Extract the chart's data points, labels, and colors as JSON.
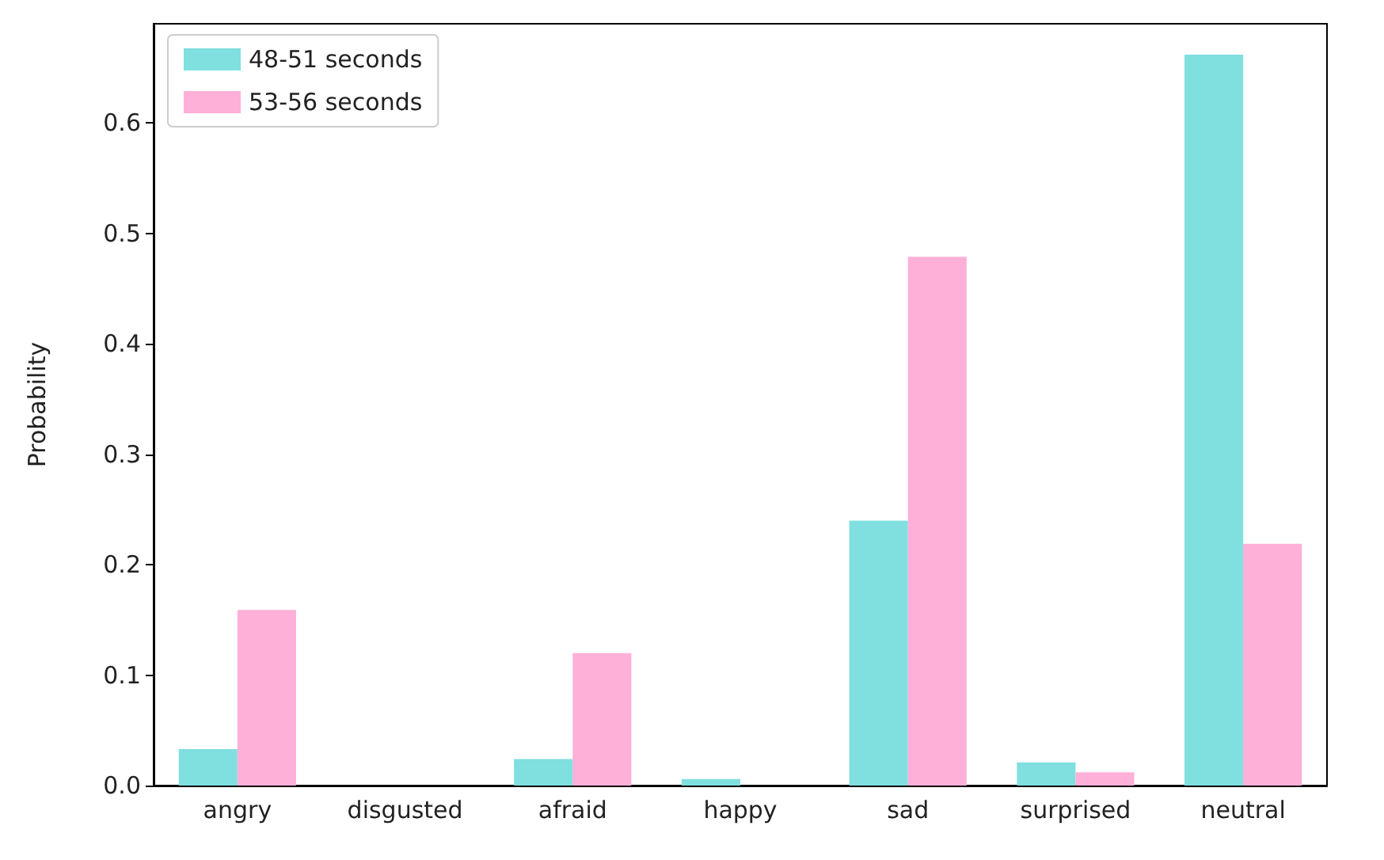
{
  "chart_data": {
    "type": "bar",
    "ylabel": "Probability",
    "categories": [
      "angry",
      "disgusted",
      "afraid",
      "happy",
      "sad",
      "surprised",
      "neutral"
    ],
    "series": [
      {
        "name": "48-51 seconds",
        "color": "#80dfdf",
        "values": [
          0.033,
          0,
          0.024,
          0.006,
          0.24,
          0.021,
          0.662
        ]
      },
      {
        "name": "53-56 seconds",
        "color": "#ffb0d8",
        "values": [
          0.159,
          0,
          0.12,
          0,
          0.479,
          0.012,
          0.219
        ]
      }
    ],
    "ylim": [
      0,
      0.69
    ],
    "yticks": [
      {
        "value": 0,
        "label": "0.0"
      },
      0.1,
      0.2,
      0.3,
      0.4,
      0.5,
      0.6
    ],
    "grid": false,
    "legend": "top left"
  }
}
